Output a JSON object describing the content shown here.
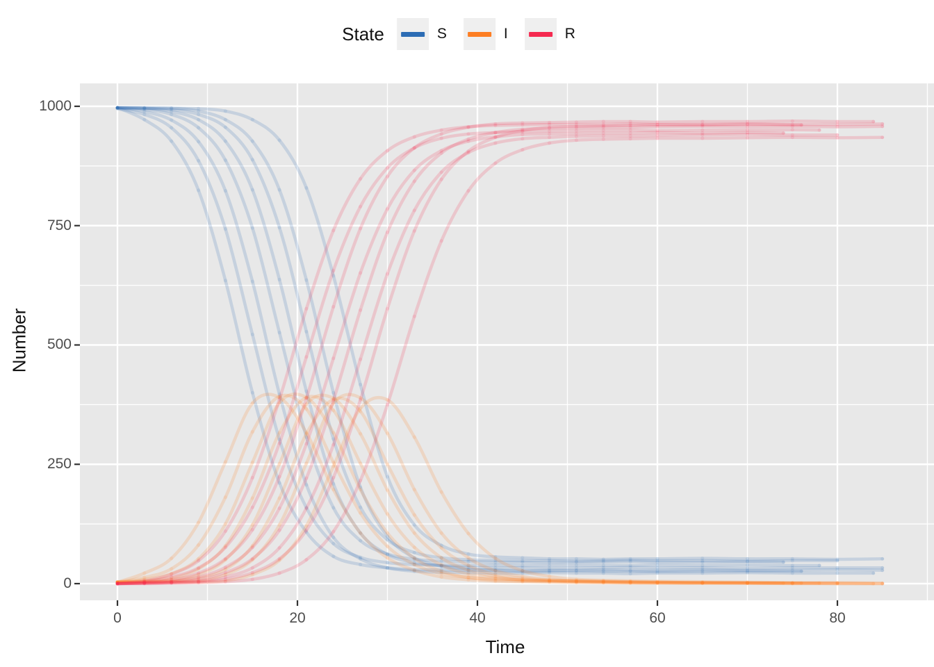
{
  "legend": {
    "title": "State",
    "items": [
      {
        "label": "S",
        "color": "#2C6CB4"
      },
      {
        "label": "I",
        "color": "#FD7E23"
      },
      {
        "label": "R",
        "color": "#F52A50"
      }
    ]
  },
  "colors": {
    "panel_background": "#E8E8E8",
    "gridline": "#FFFFFF",
    "tick_mark": "#333333",
    "tick_label": "#4D4D4D",
    "legend_key_background": "#EFEFEF"
  },
  "chart_data": {
    "type": "line",
    "title": "",
    "xlabel": "Time",
    "ylabel": "Number",
    "legend_position": "top",
    "grid": true,
    "x_ticks": [
      0,
      20,
      40,
      60,
      80
    ],
    "x_minor_ticks": [
      10,
      30,
      50,
      70,
      90
    ],
    "y_ticks": [
      0,
      250,
      500,
      750,
      1000
    ],
    "y_minor_ticks": [
      125,
      375,
      625,
      875
    ],
    "x_tick_labels": [
      "0",
      "20",
      "40",
      "60",
      "80"
    ],
    "y_tick_labels": [
      "0",
      "250",
      "500",
      "750",
      "1000"
    ],
    "xlim": [
      -4.2,
      90.7
    ],
    "ylim": [
      -33,
      1048
    ],
    "states": [
      "S",
      "I",
      "R"
    ],
    "state_colors": {
      "S": "#2C6CB4",
      "I": "#FD7E23",
      "R": "#F52A50"
    },
    "line_alpha": 0.18,
    "runs": [
      {
        "t": [
          0,
          3,
          6,
          9,
          12,
          15,
          18,
          21,
          24,
          27,
          30,
          33,
          36,
          39,
          42,
          45,
          48,
          51,
          54,
          57,
          60,
          65,
          70,
          75,
          80,
          85
        ],
        "S": [
          997,
          972,
          927,
          824,
          635,
          400,
          211,
          108,
          57,
          40,
          33,
          29,
          29,
          28,
          28,
          27,
          28,
          28,
          29,
          28,
          28,
          29,
          28,
          28,
          29,
          28
        ],
        "I": [
          3,
          22,
          53,
          128,
          255,
          378,
          390,
          316,
          197,
          106,
          54,
          28,
          14,
          8,
          5,
          4,
          3,
          2,
          2,
          1,
          1,
          1,
          1,
          0,
          0,
          0
        ],
        "R": [
          0,
          6,
          20,
          48,
          110,
          222,
          386,
          576,
          740,
          848,
          907,
          936,
          950,
          957,
          960,
          961,
          962,
          962,
          962,
          963,
          962,
          962,
          963,
          962,
          962,
          963
        ]
      },
      {
        "t": [
          0,
          3,
          6,
          9,
          12,
          15,
          18,
          21,
          24,
          27,
          30,
          33,
          36,
          39,
          42,
          45,
          48,
          51,
          54,
          57,
          60,
          65,
          70,
          75,
          78
        ],
        "S": [
          995,
          983,
          955,
          886,
          743,
          522,
          302,
          159,
          84,
          55,
          44,
          40,
          39,
          38,
          39,
          38,
          38,
          39,
          38,
          38,
          39,
          38,
          39,
          38,
          38
        ],
        "I": [
          3,
          13,
          31,
          81,
          181,
          318,
          392,
          366,
          254,
          148,
          78,
          40,
          21,
          13,
          10,
          8,
          6,
          4,
          3,
          2,
          2,
          1,
          1,
          1,
          1
        ],
        "R": [
          0,
          4,
          14,
          33,
          76,
          160,
          294,
          475,
          656,
          790,
          871,
          913,
          933,
          942,
          945,
          947,
          948,
          949,
          950,
          950,
          949,
          950,
          950,
          951,
          950
        ]
      },
      {
        "t": [
          0,
          3,
          6,
          9,
          12,
          15,
          18,
          21,
          24,
          27,
          30,
          33,
          36,
          39,
          42,
          45,
          48,
          51,
          54,
          57,
          60,
          65,
          70,
          75,
          80,
          84
        ],
        "S": [
          997,
          989,
          971,
          926,
          823,
          633,
          397,
          207,
          97,
          52,
          33,
          26,
          24,
          23,
          22,
          22,
          23,
          22,
          22,
          21,
          22,
          22,
          23,
          22,
          22,
          22
        ],
        "I": [
          3,
          9,
          21,
          52,
          125,
          254,
          379,
          390,
          316,
          197,
          106,
          53,
          26,
          13,
          7,
          5,
          4,
          3,
          2,
          2,
          1,
          1,
          1,
          1,
          0,
          0
        ],
        "R": [
          0,
          2,
          8,
          22,
          52,
          113,
          224,
          388,
          580,
          744,
          853,
          913,
          942,
          956,
          963,
          965,
          966,
          967,
          968,
          968,
          967,
          968,
          968,
          969,
          968,
          968
        ]
      },
      {
        "t": [
          0,
          3,
          6,
          9,
          12,
          15,
          18,
          21,
          24,
          27,
          30,
          33,
          36,
          39,
          42,
          45,
          48,
          51,
          54,
          57,
          60,
          65,
          70,
          74
        ],
        "S": [
          997,
          993,
          983,
          955,
          887,
          745,
          526,
          307,
          159,
          90,
          62,
          51,
          47,
          46,
          45,
          45,
          44,
          45,
          45,
          46,
          45,
          45,
          46,
          45
        ],
        "I": [
          3,
          6,
          12,
          31,
          79,
          179,
          316,
          390,
          363,
          252,
          146,
          76,
          39,
          20,
          12,
          7,
          6,
          5,
          4,
          3,
          3,
          2,
          1,
          1
        ],
        "R": [
          0,
          1,
          5,
          14,
          34,
          76,
          158,
          293,
          472,
          651,
          785,
          866,
          907,
          927,
          936,
          941,
          942,
          943,
          944,
          944,
          945,
          944,
          945,
          944
        ]
      },
      {
        "t": [
          0,
          3,
          6,
          9,
          12,
          15,
          18,
          21,
          24,
          27,
          30,
          33,
          36,
          39,
          42,
          45,
          48,
          51,
          54,
          57,
          60,
          65,
          70,
          75,
          80,
          85
        ],
        "S": [
          997,
          996,
          989,
          972,
          927,
          825,
          637,
          403,
          209,
          106,
          61,
          44,
          37,
          34,
          33,
          33,
          32,
          33,
          33,
          34,
          33,
          33,
          32,
          33,
          33,
          33
        ],
        "I": [
          3,
          4,
          8,
          19,
          50,
          123,
          251,
          376,
          388,
          314,
          196,
          106,
          54,
          28,
          15,
          8,
          6,
          5,
          4,
          3,
          2,
          2,
          1,
          1,
          1,
          0
        ],
        "R": [
          0,
          1,
          3,
          9,
          23,
          52,
          112,
          221,
          384,
          573,
          736,
          843,
          902,
          931,
          945,
          952,
          954,
          955,
          956,
          956,
          957,
          958,
          957,
          958,
          957,
          958
        ]
      },
      {
        "t": [
          0,
          3,
          6,
          9,
          12,
          15,
          18,
          21,
          24,
          27,
          30,
          33,
          36,
          39,
          42,
          45,
          48,
          51,
          54,
          57,
          60,
          65,
          70,
          75,
          80
        ],
        "S": [
          997,
          996,
          993,
          983,
          956,
          888,
          746,
          528,
          303,
          160,
          92,
          65,
          54,
          50,
          49,
          48,
          48,
          47,
          48,
          49,
          48,
          48,
          47,
          48,
          48
        ],
        "I": [
          3,
          4,
          5,
          12,
          30,
          79,
          179,
          314,
          386,
          361,
          250,
          144,
          75,
          38,
          19,
          11,
          8,
          6,
          5,
          4,
          3,
          2,
          2,
          1,
          1
        ],
        "R": [
          0,
          1,
          2,
          5,
          14,
          33,
          75,
          158,
          291,
          470,
          649,
          782,
          862,
          903,
          923,
          932,
          935,
          937,
          938,
          938,
          939,
          940,
          941,
          940,
          940
        ]
      },
      {
        "t": [
          0,
          3,
          6,
          9,
          12,
          15,
          18,
          21,
          24,
          27,
          30,
          33,
          36,
          39,
          42,
          45,
          48,
          51,
          54,
          57,
          60,
          65,
          70,
          76
        ],
        "S": [
          997,
          996,
          996,
          990,
          972,
          927,
          825,
          636,
          400,
          202,
          99,
          54,
          37,
          30,
          28,
          26,
          26,
          27,
          26,
          26,
          25,
          26,
          26,
          26
        ],
        "I": [
          3,
          3,
          4,
          6,
          19,
          50,
          123,
          252,
          378,
          389,
          315,
          197,
          106,
          54,
          27,
          15,
          8,
          6,
          5,
          4,
          3,
          2,
          2,
          1
        ],
        "R": [
          0,
          1,
          2,
          4,
          9,
          23,
          52,
          112,
          222,
          385,
          576,
          739,
          847,
          906,
          935,
          949,
          956,
          958,
          959,
          960,
          961,
          961,
          962,
          961
        ]
      },
      {
        "t": [
          0,
          3,
          6,
          9,
          12,
          15,
          18,
          21,
          24,
          27,
          30,
          33,
          36,
          39,
          42,
          45,
          48,
          51,
          54,
          57,
          60,
          65,
          70,
          75,
          80,
          85
        ],
        "S": [
          997,
          997,
          996,
          995,
          990,
          972,
          929,
          829,
          645,
          417,
          224,
          123,
          80,
          62,
          56,
          54,
          52,
          52,
          51,
          52,
          52,
          53,
          52,
          52,
          51,
          52
        ],
        "I": [
          3,
          3,
          3,
          3,
          6,
          19,
          49,
          121,
          246,
          367,
          385,
          307,
          192,
          105,
          53,
          27,
          15,
          9,
          7,
          6,
          5,
          4,
          3,
          2,
          2,
          1
        ],
        "R": [
          0,
          0,
          1,
          2,
          4,
          9,
          22,
          50,
          109,
          216,
          375,
          560,
          718,
          823,
          881,
          909,
          923,
          929,
          931,
          932,
          933,
          933,
          934,
          935,
          934,
          935
        ]
      }
    ]
  }
}
